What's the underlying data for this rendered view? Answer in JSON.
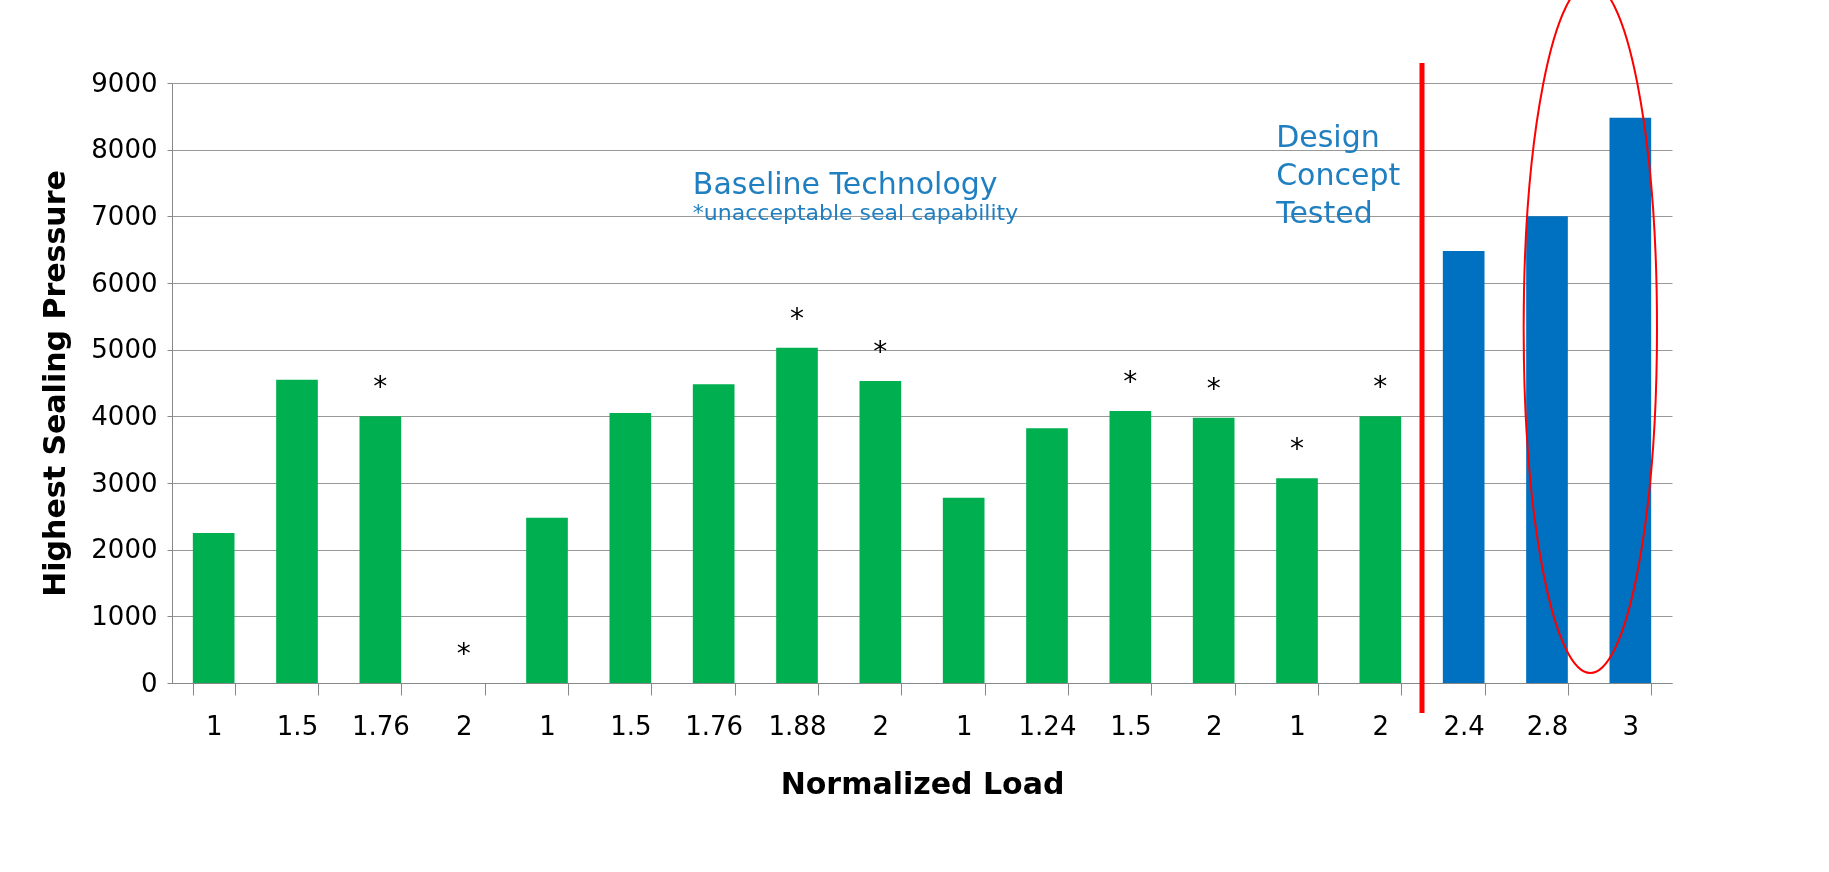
{
  "chart_data": {
    "type": "bar",
    "xlabel": "Normalized Load",
    "ylabel": "Highest Sealing Pressure",
    "categories": [
      "1",
      "1.5",
      "1.76",
      "2",
      "1",
      "1.5",
      "1.76",
      "1.88",
      "2",
      "1",
      "1.24",
      "1.5",
      "2",
      "1",
      "2",
      "2.4",
      "2.8",
      "3"
    ],
    "values": [
      2250,
      4550,
      4000,
      0,
      2480,
      4050,
      4480,
      5030,
      4530,
      2780,
      3820,
      4080,
      3980,
      3070,
      4000,
      6480,
      7000,
      8480
    ],
    "colors": [
      "#00b050",
      "#00b050",
      "#00b050",
      "#00b050",
      "#00b050",
      "#00b050",
      "#00b050",
      "#00b050",
      "#00b050",
      "#00b050",
      "#00b050",
      "#00b050",
      "#00b050",
      "#00b050",
      "#00b050",
      "#0070c0",
      "#0070c0",
      "#0070c0"
    ],
    "value_labels": [
      null,
      null,
      "*",
      "*",
      null,
      null,
      null,
      "*",
      "*",
      null,
      null,
      "*",
      "*",
      "*",
      "*",
      null,
      null,
      null
    ],
    "ylim": [
      0,
      9000
    ],
    "yticks": [
      0,
      1000,
      2000,
      3000,
      4000,
      5000,
      6000,
      7000,
      8000,
      9000
    ],
    "grid": "y",
    "ref_lines": [
      {
        "axis": "x",
        "value": "2.4",
        "color": "#ff0000"
      }
    ],
    "annotations": [
      "Baseline Technology",
      "*unacceptable seal capability",
      "Design Concept Tested"
    ]
  }
}
